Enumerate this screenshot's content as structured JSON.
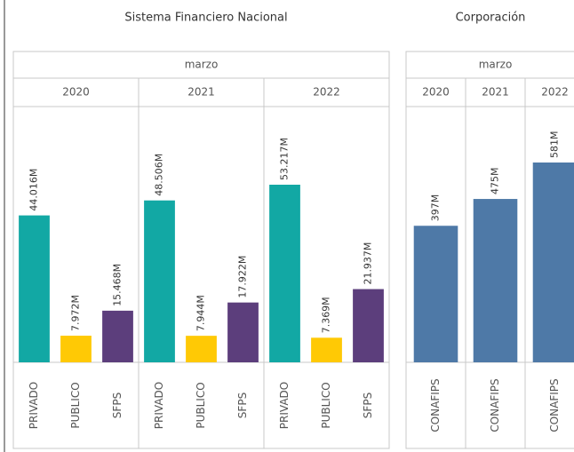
{
  "charts": [
    {
      "type": "bar",
      "title": "Sistema Financiero Nacional",
      "header": "marzo",
      "groups": [
        "2020",
        "2021",
        "2022"
      ],
      "categories": [
        "PRIVADO",
        "PUBLICO",
        "SFPS"
      ],
      "colors": [
        "#12a8a4",
        "#ffc905",
        "#5c3e7c"
      ],
      "values": [
        [
          44.016,
          7.972,
          15.468
        ],
        [
          48.506,
          7.944,
          17.922
        ],
        [
          53.217,
          7.369,
          21.937
        ]
      ],
      "value_labels": [
        [
          "44.016M",
          "7.972M",
          "15.468M"
        ],
        [
          "48.506M",
          "7.944M",
          "17.922M"
        ],
        [
          "53.217M",
          "7.369M",
          "21.937M"
        ]
      ]
    },
    {
      "type": "bar",
      "title": "Corporación",
      "header": "marzo",
      "groups": [
        "2020",
        "2021",
        "2022"
      ],
      "categories": [
        "CONAFIPS"
      ],
      "colors": [
        "#4e79a7"
      ],
      "values": [
        [
          397
        ],
        [
          475
        ],
        [
          581
        ]
      ],
      "value_labels": [
        [
          "397M"
        ],
        [
          "475M"
        ],
        [
          "581M"
        ]
      ]
    }
  ]
}
